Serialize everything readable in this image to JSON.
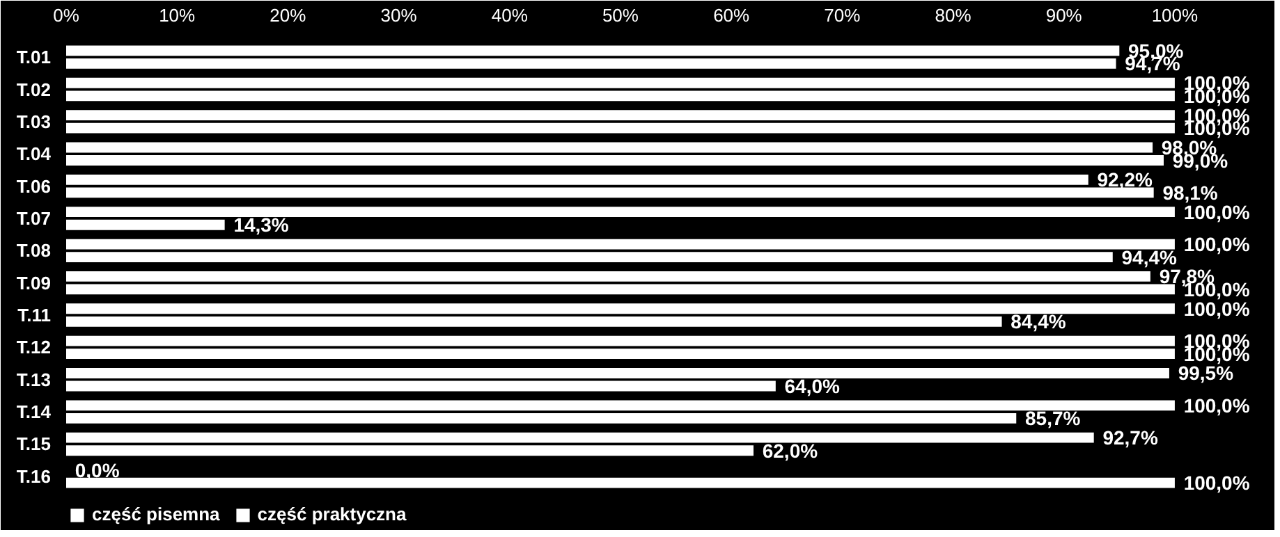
{
  "chart_data": {
    "type": "bar",
    "orientation": "horizontal",
    "categories": [
      "T.01",
      "T.02",
      "T.03",
      "T.04",
      "T.06",
      "T.07",
      "T.08",
      "T.09",
      "T.11",
      "T.12",
      "T.13",
      "T.14",
      "T.15",
      "T.16"
    ],
    "series": [
      {
        "name": "część pisemna",
        "color": "#ffffff",
        "values": [
          95.0,
          100,
          100,
          98.0,
          92.2,
          100,
          100,
          97.8,
          100,
          100,
          99.5,
          100,
          92.7,
          0.0
        ],
        "value_labels": [
          "95,0%",
          "100,0%",
          "100,0%",
          "98,0%",
          "92,2%",
          "100,0%",
          "100,0%",
          "97,8%",
          "100,0%",
          "100,0%",
          "99,5%",
          "100,0%",
          "92,7%",
          "0,0%"
        ]
      },
      {
        "name": "część praktyczna",
        "color": "#ffffff",
        "values": [
          94.7,
          100,
          100,
          99.0,
          98.1,
          14.3,
          94.4,
          100,
          84.4,
          100,
          64.0,
          85.7,
          62.0,
          100
        ],
        "value_labels": [
          "94,7%",
          "100,0%",
          "100,0%",
          "99,0%",
          "98,1%",
          "14,3%",
          "94,4%",
          "100,0%",
          "84,4%",
          "100,0%",
          "64,0%",
          "85,7%",
          "62,0%",
          "100,0%"
        ]
      }
    ],
    "xlim": [
      0,
      108.8
    ],
    "xticks": [
      {
        "value": 0,
        "label": "0%"
      },
      {
        "value": 10,
        "label": "10%"
      },
      {
        "value": 20,
        "label": "20%"
      },
      {
        "value": 30,
        "label": "30%"
      },
      {
        "value": 40,
        "label": "40%"
      },
      {
        "value": 50,
        "label": "50%"
      },
      {
        "value": 60,
        "label": "60%"
      },
      {
        "value": 70,
        "label": "70%"
      },
      {
        "value": 80,
        "label": "80%"
      },
      {
        "value": 90,
        "label": "90%"
      },
      {
        "value": 100,
        "label": "100%"
      }
    ],
    "legend": "bottom left",
    "grid": false
  }
}
